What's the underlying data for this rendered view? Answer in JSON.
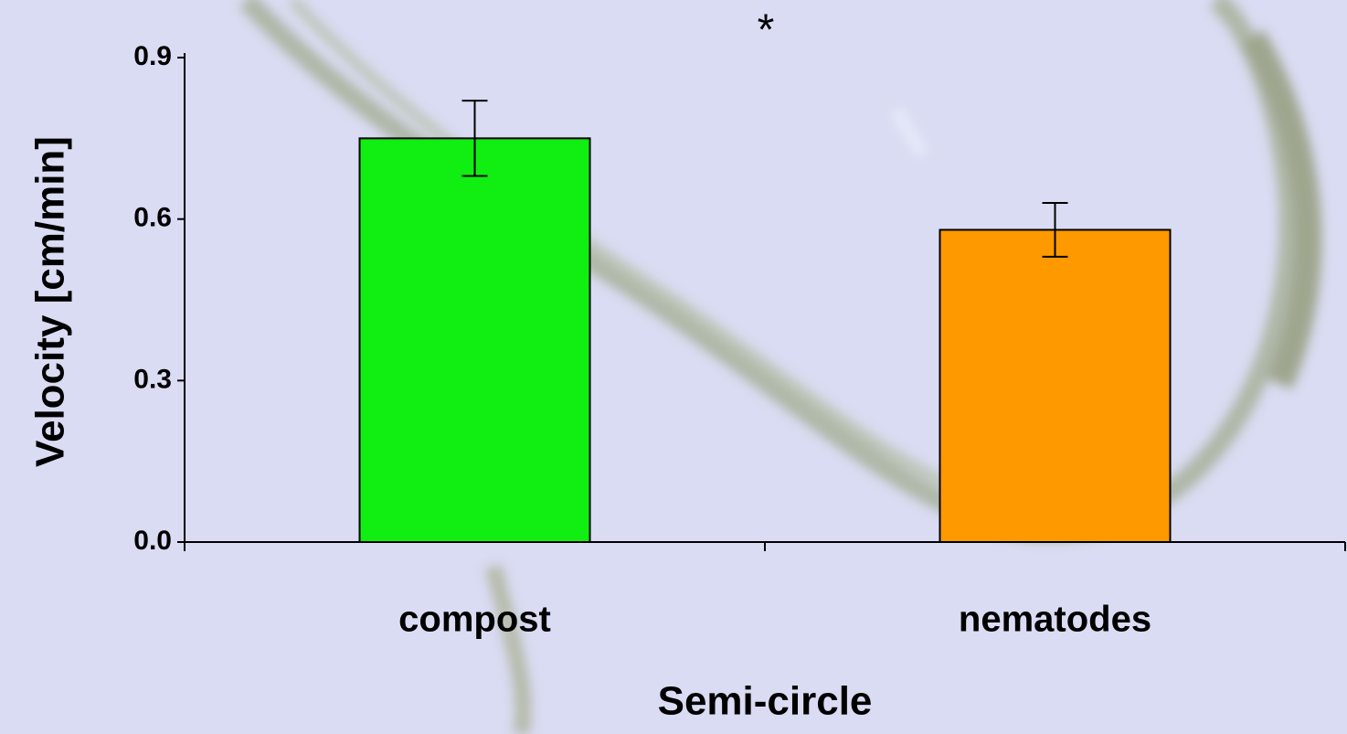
{
  "chart_data": {
    "type": "bar",
    "categories": [
      "compost",
      "nematodes"
    ],
    "series": [
      {
        "color": "#11ee11",
        "values": [
          0.75,
          null
        ],
        "errors": [
          0.07,
          null
        ]
      },
      {
        "color": "#ff9900",
        "values": [
          null,
          0.58
        ],
        "errors": [
          null,
          0.05
        ]
      }
    ],
    "ylim": [
      0,
      0.9
    ],
    "yticks": [
      {
        "value": 0,
        "label": "0.0"
      },
      0.3,
      0.6,
      0.9
    ],
    "ylabel": "Velocity [cm/min]",
    "xlabel": "Semi-circle",
    "annotation": "*"
  }
}
